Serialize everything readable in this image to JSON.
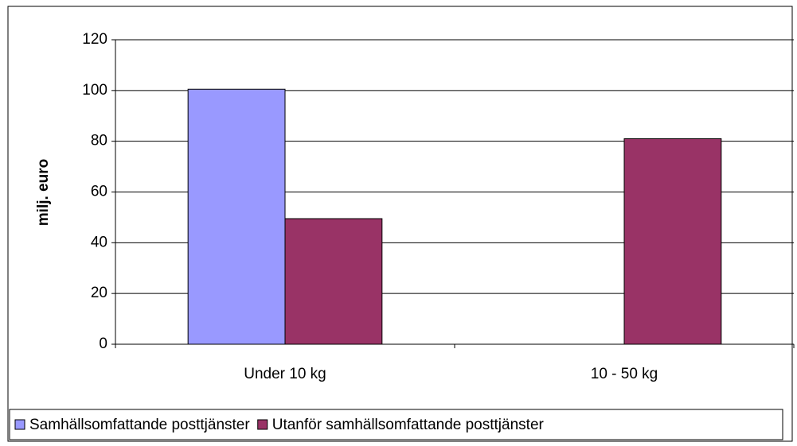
{
  "chart_data": {
    "type": "bar",
    "y_label": "milj. euro",
    "categories": [
      "Under 10 kg",
      "10 - 50 kg"
    ],
    "series": [
      {
        "name": "Samhällsomfattande posttjänster",
        "color": "#9999ff",
        "values": [
          100.5,
          0
        ]
      },
      {
        "name": "Utanför samhällsomfattande posttjänster",
        "color": "#993366",
        "values": [
          49.5,
          81
        ]
      }
    ],
    "ylim": [
      0,
      120
    ],
    "yticks": [
      0,
      20,
      40,
      60,
      80,
      100,
      120
    ],
    "grid": true,
    "legend": "bottom"
  }
}
